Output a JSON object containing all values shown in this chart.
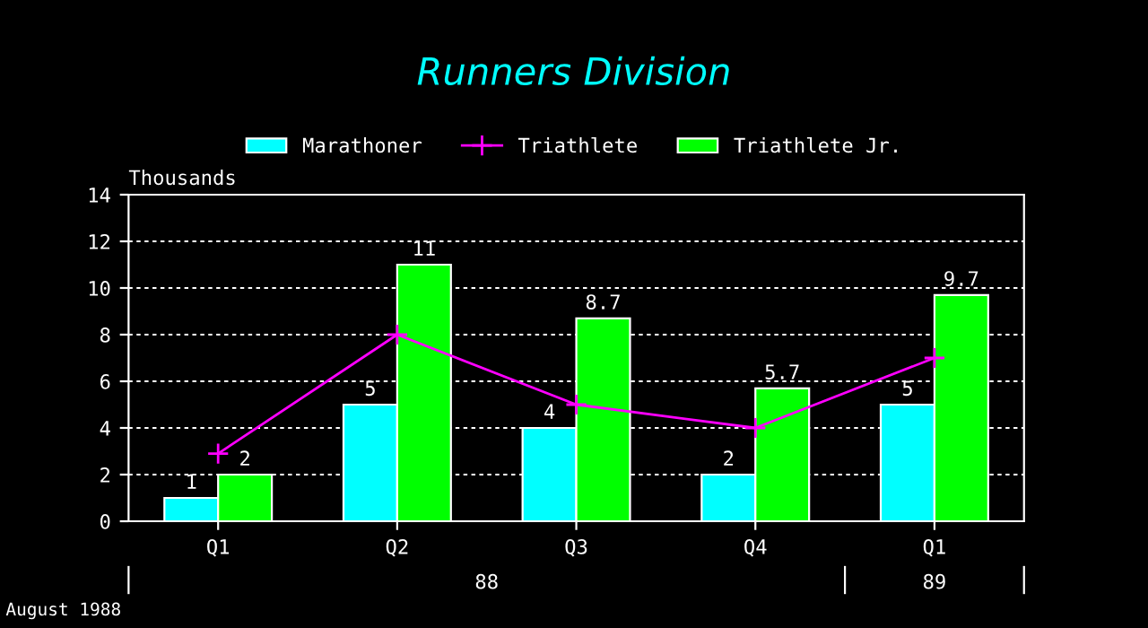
{
  "chart_data": {
    "type": "bar",
    "title": "Runners Division",
    "ylabel": "Thousands",
    "categories": [
      "Q1",
      "Q2",
      "Q3",
      "Q4",
      "Q1"
    ],
    "series": [
      {
        "name": "Marathoner",
        "color": "#00ffff",
        "values": [
          1,
          5,
          4,
          2,
          5
        ],
        "value_labels": [
          "1",
          "5",
          "4",
          "2",
          "5"
        ]
      },
      {
        "name": "Triathlete",
        "type": "line",
        "color": "#ff00ff",
        "values": [
          2.9,
          8,
          5,
          4,
          7
        ],
        "marker": "cross"
      },
      {
        "name": "Triathlete Jr.",
        "color": "#00ff00",
        "values": [
          2,
          11,
          8.7,
          5.7,
          9.7
        ],
        "value_labels": [
          "2",
          "11",
          "8.7",
          "5.7",
          "9.7"
        ]
      }
    ],
    "ylim": [
      0,
      14
    ],
    "yticks": [
      0,
      2,
      4,
      6,
      8,
      10,
      12,
      14
    ],
    "grid": "y",
    "legend": "top",
    "annotations": [
      "88",
      "89",
      "August 1988"
    ]
  }
}
